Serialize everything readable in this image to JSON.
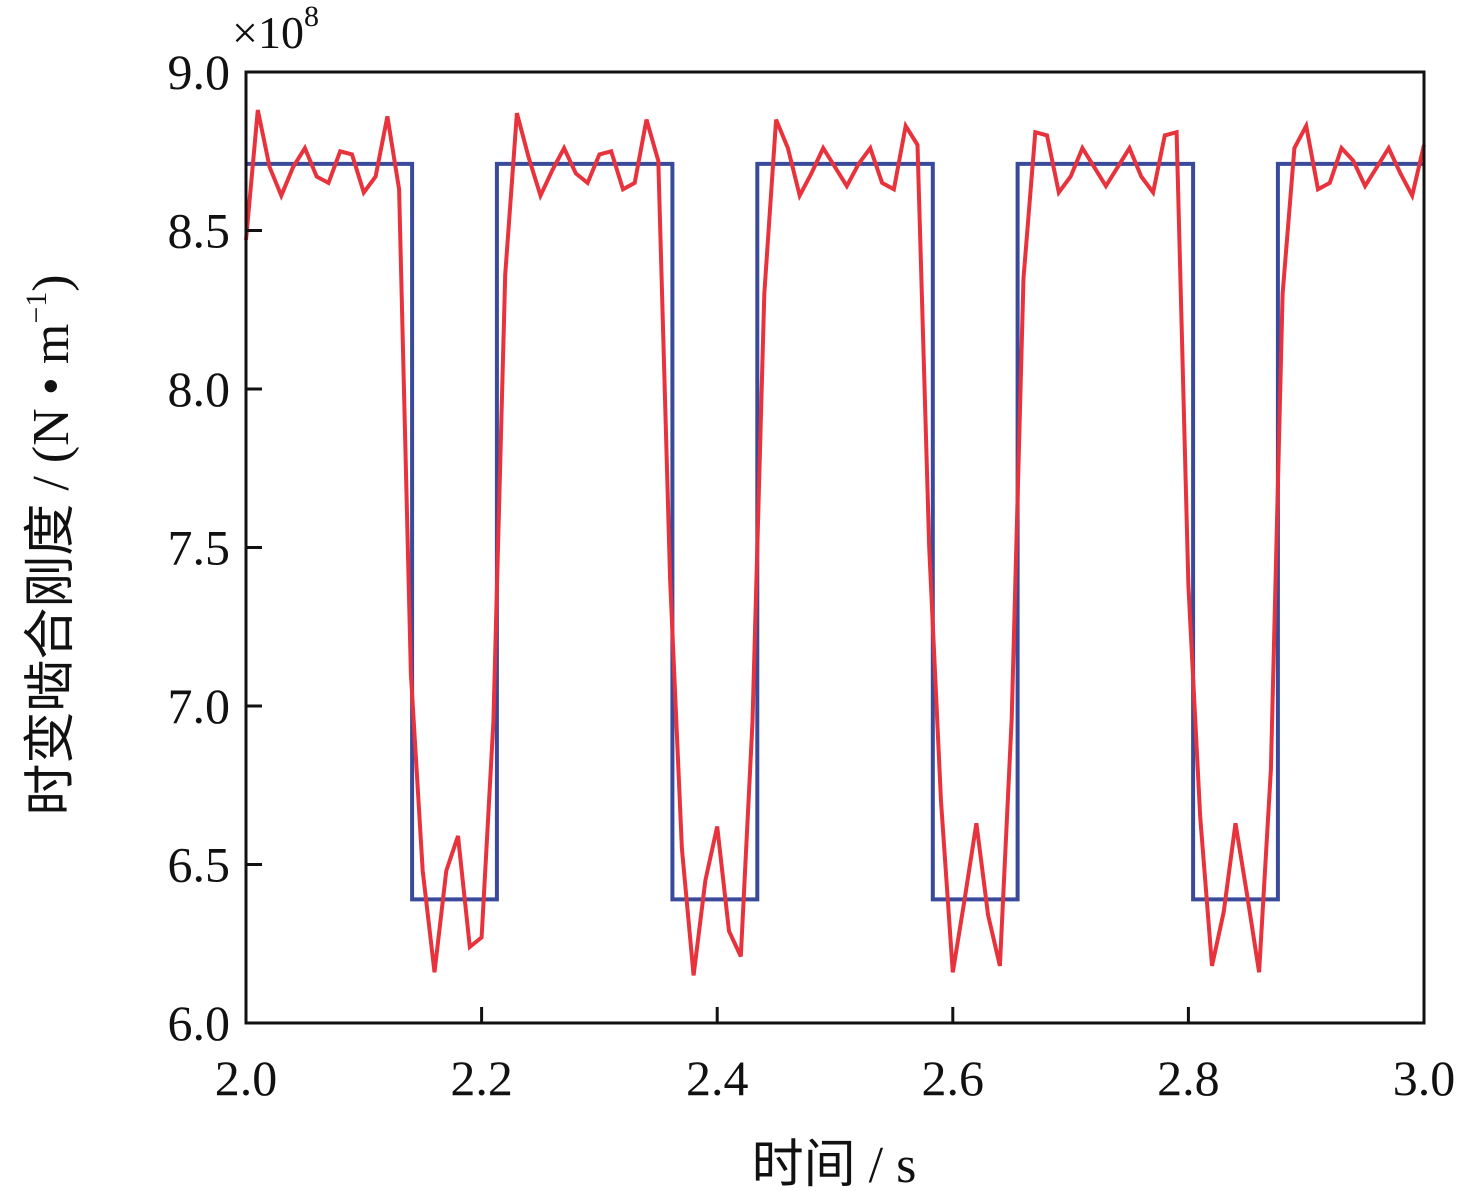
{
  "chart_data": {
    "type": "line",
    "xlabel": "时间 / s",
    "ylabel": "时变啮合刚度 / (N • m",
    "ylabel_sup": "−1",
    "ylabel_close": ")",
    "y_multiplier": "×10",
    "y_multiplier_exp": "8",
    "xlim": [
      2.0,
      3.0
    ],
    "ylim": [
      6.0,
      9.0
    ],
    "x_ticks": [
      "2.0",
      "2.2",
      "2.4",
      "2.6",
      "2.8",
      "3.0"
    ],
    "y_ticks": [
      "6.0",
      "6.5",
      "7.0",
      "7.5",
      "8.0",
      "8.5",
      "9.0"
    ],
    "grid": false,
    "colors": {
      "series_1": "#3a4a9a",
      "series_2": "#e8323c"
    },
    "series": [
      {
        "color": "#3a4a9a",
        "x": [
          2.0,
          2.141,
          2.141,
          2.213,
          2.213,
          2.362,
          2.362,
          2.434,
          2.434,
          2.583,
          2.583,
          2.655,
          2.655,
          2.804,
          2.804,
          2.876,
          2.876,
          3.0
        ],
        "y": [
          8.71,
          8.71,
          6.39,
          6.39,
          8.71,
          8.71,
          6.39,
          6.39,
          8.71,
          8.71,
          6.39,
          6.39,
          8.71,
          8.71,
          6.39,
          6.39,
          8.71,
          8.71
        ]
      },
      {
        "color": "#e8323c",
        "x": [
          2.0,
          2.01,
          2.02,
          2.03,
          2.04,
          2.05,
          2.06,
          2.07,
          2.08,
          2.09,
          2.1,
          2.11,
          2.12,
          2.13,
          2.14,
          2.15,
          2.16,
          2.17,
          2.18,
          2.19,
          2.2,
          2.21,
          2.22,
          2.23,
          2.24,
          2.25,
          2.26,
          2.27,
          2.28,
          2.29,
          2.3,
          2.31,
          2.32,
          2.33,
          2.34,
          2.35,
          2.36,
          2.37,
          2.38,
          2.39,
          2.4,
          2.41,
          2.42,
          2.43,
          2.44,
          2.45,
          2.46,
          2.47,
          2.48,
          2.49,
          2.5,
          2.51,
          2.52,
          2.53,
          2.54,
          2.55,
          2.56,
          2.57,
          2.58,
          2.59,
          2.6,
          2.61,
          2.62,
          2.63,
          2.64,
          2.65,
          2.66,
          2.67,
          2.68,
          2.69,
          2.7,
          2.71,
          2.72,
          2.73,
          2.74,
          2.75,
          2.76,
          2.77,
          2.78,
          2.79,
          2.8,
          2.81,
          2.82,
          2.83,
          2.84,
          2.85,
          2.86,
          2.87,
          2.88,
          2.89,
          2.9,
          2.91,
          2.92,
          2.93,
          2.94,
          2.95,
          2.96,
          2.97,
          2.98,
          2.99,
          3.0
        ],
        "y": [
          8.47,
          8.88,
          8.7,
          8.61,
          8.7,
          8.76,
          8.67,
          8.65,
          8.75,
          8.74,
          8.62,
          8.67,
          8.86,
          8.63,
          7.1,
          6.48,
          6.16,
          6.48,
          6.59,
          6.24,
          6.27,
          6.95,
          8.36,
          8.87,
          8.73,
          8.61,
          8.69,
          8.76,
          8.68,
          8.65,
          8.74,
          8.75,
          8.63,
          8.65,
          8.85,
          8.72,
          7.4,
          6.55,
          6.15,
          6.45,
          6.62,
          6.29,
          6.21,
          6.95,
          8.3,
          8.85,
          8.76,
          8.61,
          8.68,
          8.76,
          8.7,
          8.64,
          8.71,
          8.76,
          8.65,
          8.63,
          8.83,
          8.77,
          7.5,
          6.7,
          6.16,
          6.39,
          6.63,
          6.34,
          6.18,
          6.96,
          8.35,
          8.81,
          8.8,
          8.62,
          8.67,
          8.76,
          8.7,
          8.64,
          8.7,
          8.76,
          8.67,
          8.62,
          8.8,
          8.81,
          7.38,
          6.65,
          6.18,
          6.35,
          6.63,
          6.4,
          6.16,
          6.8,
          8.3,
          8.76,
          8.83,
          8.63,
          8.65,
          8.76,
          8.72,
          8.64,
          8.7,
          8.76,
          8.68,
          8.61,
          8.77
        ]
      }
    ]
  }
}
